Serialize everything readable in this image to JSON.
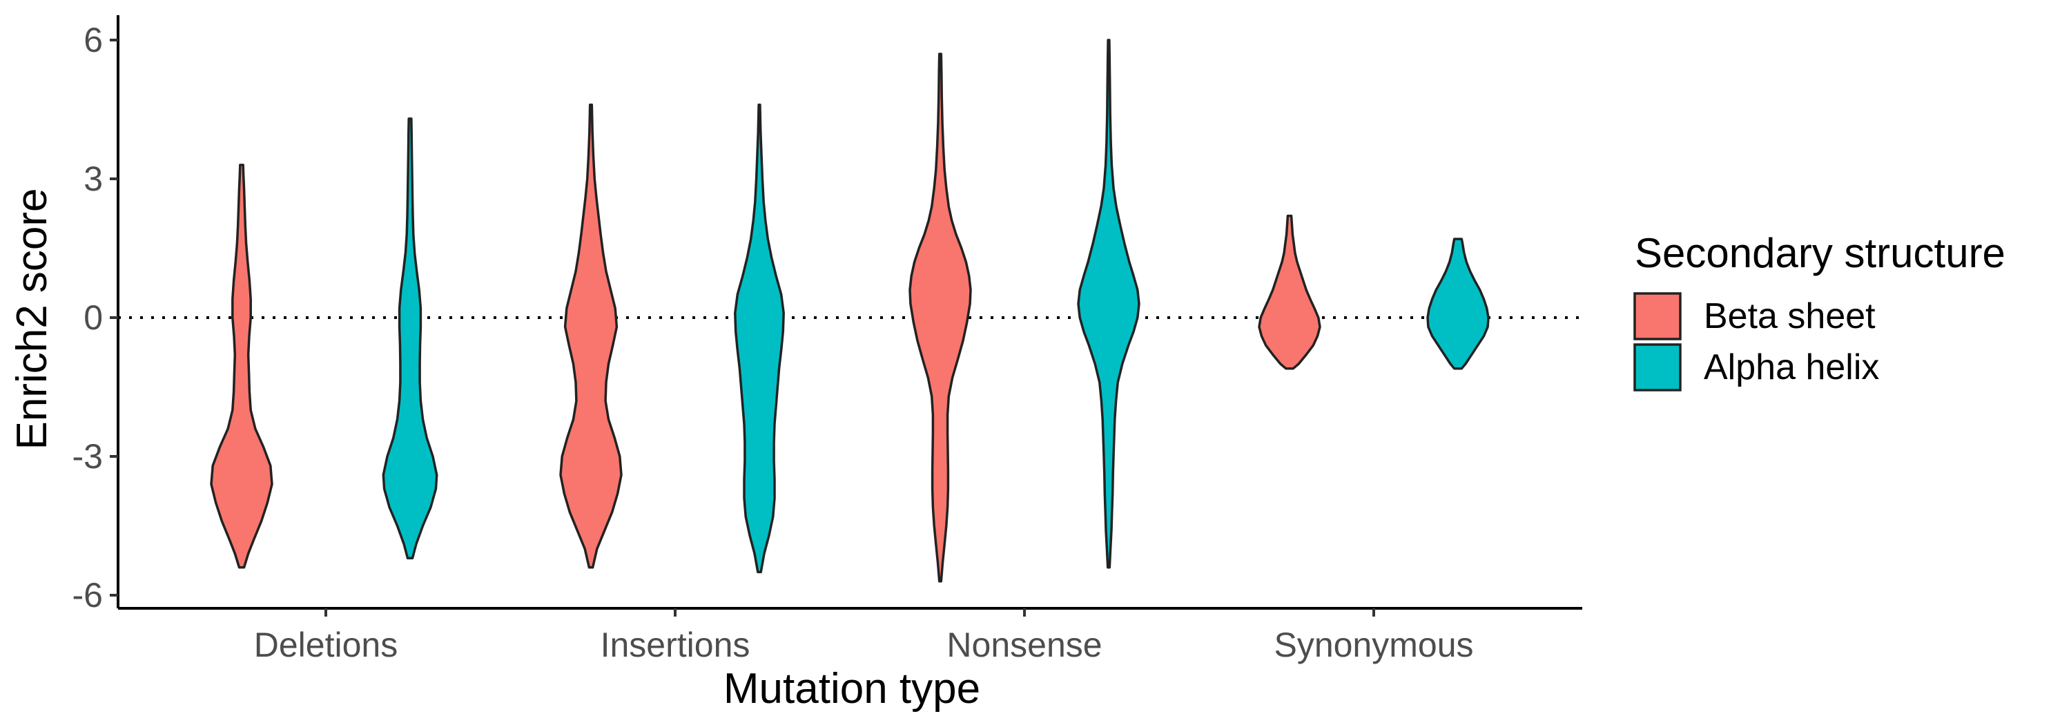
{
  "chart_data": {
    "type": "violin",
    "title": "",
    "xlabel": "Mutation type",
    "ylabel": "Enrich2 score",
    "ylim": [
      -6.3,
      6.6
    ],
    "yticks": [
      "6",
      "3",
      "0",
      "-3",
      "-6"
    ],
    "categories": [
      "Deletions",
      "Insertions",
      "Nonsense",
      "Synonymous"
    ],
    "reference_line": {
      "y": 0,
      "style": "dotted"
    },
    "grid": false,
    "legend": {
      "title": "Secondary structure",
      "position": "right",
      "entries": [
        "Beta sheet",
        "Alpha helix"
      ]
    },
    "series": [
      {
        "name": "Beta sheet",
        "color": "#F8766D",
        "violins": [
          {
            "category": "Deletions",
            "min": -5.4,
            "max": 3.3,
            "profile": [
              [
                -5.4,
                0.08
              ],
              [
                -5.1,
                0.22
              ],
              [
                -4.8,
                0.4
              ],
              [
                -4.4,
                0.65
              ],
              [
                -4.0,
                0.85
              ],
              [
                -3.6,
                1.0
              ],
              [
                -3.2,
                0.95
              ],
              [
                -2.8,
                0.72
              ],
              [
                -2.4,
                0.45
              ],
              [
                -2.0,
                0.3
              ],
              [
                -1.6,
                0.26
              ],
              [
                -1.2,
                0.24
              ],
              [
                -0.8,
                0.22
              ],
              [
                -0.4,
                0.25
              ],
              [
                0,
                0.3
              ],
              [
                0.4,
                0.3
              ],
              [
                0.8,
                0.26
              ],
              [
                1.2,
                0.2
              ],
              [
                1.6,
                0.15
              ],
              [
                2.0,
                0.12
              ],
              [
                2.4,
                0.1
              ],
              [
                2.8,
                0.08
              ],
              [
                3.1,
                0.06
              ],
              [
                3.3,
                0.05
              ]
            ]
          },
          {
            "category": "Insertions",
            "min": -5.4,
            "max": 4.6,
            "profile": [
              [
                -5.4,
                0.06
              ],
              [
                -5.0,
                0.2
              ],
              [
                -4.6,
                0.45
              ],
              [
                -4.2,
                0.7
              ],
              [
                -3.8,
                0.88
              ],
              [
                -3.4,
                1.0
              ],
              [
                -3.0,
                0.95
              ],
              [
                -2.6,
                0.78
              ],
              [
                -2.2,
                0.58
              ],
              [
                -1.8,
                0.48
              ],
              [
                -1.4,
                0.5
              ],
              [
                -1.0,
                0.58
              ],
              [
                -0.6,
                0.72
              ],
              [
                -0.2,
                0.85
              ],
              [
                0.2,
                0.8
              ],
              [
                0.6,
                0.65
              ],
              [
                1.0,
                0.5
              ],
              [
                1.4,
                0.4
              ],
              [
                1.8,
                0.32
              ],
              [
                2.2,
                0.25
              ],
              [
                2.6,
                0.18
              ],
              [
                3.0,
                0.12
              ],
              [
                3.5,
                0.08
              ],
              [
                4.0,
                0.05
              ],
              [
                4.6,
                0.03
              ]
            ]
          },
          {
            "category": "Nonsense",
            "min": -5.7,
            "max": 5.7,
            "profile": [
              [
                -5.7,
                0.03
              ],
              [
                -5.3,
                0.08
              ],
              [
                -4.9,
                0.14
              ],
              [
                -4.5,
                0.2
              ],
              [
                -4.1,
                0.24
              ],
              [
                -3.7,
                0.26
              ],
              [
                -3.3,
                0.26
              ],
              [
                -2.9,
                0.25
              ],
              [
                -2.5,
                0.24
              ],
              [
                -2.1,
                0.24
              ],
              [
                -1.7,
                0.28
              ],
              [
                -1.3,
                0.4
              ],
              [
                -0.9,
                0.58
              ],
              [
                -0.5,
                0.75
              ],
              [
                -0.1,
                0.88
              ],
              [
                0.3,
                0.98
              ],
              [
                0.6,
                1.0
              ],
              [
                0.9,
                0.95
              ],
              [
                1.2,
                0.85
              ],
              [
                1.5,
                0.7
              ],
              [
                1.8,
                0.52
              ],
              [
                2.1,
                0.38
              ],
              [
                2.4,
                0.28
              ],
              [
                2.8,
                0.2
              ],
              [
                3.2,
                0.14
              ],
              [
                3.7,
                0.1
              ],
              [
                4.2,
                0.07
              ],
              [
                4.8,
                0.05
              ],
              [
                5.3,
                0.04
              ],
              [
                5.7,
                0.03
              ]
            ]
          },
          {
            "category": "Synonymous",
            "min": -1.1,
            "max": 2.2,
            "profile": [
              [
                -1.1,
                0.12
              ],
              [
                -1.0,
                0.3
              ],
              [
                -0.8,
                0.55
              ],
              [
                -0.6,
                0.78
              ],
              [
                -0.4,
                0.92
              ],
              [
                -0.2,
                1.0
              ],
              [
                0,
                0.95
              ],
              [
                0.2,
                0.82
              ],
              [
                0.4,
                0.68
              ],
              [
                0.6,
                0.55
              ],
              [
                0.8,
                0.45
              ],
              [
                1.0,
                0.35
              ],
              [
                1.2,
                0.25
              ],
              [
                1.4,
                0.18
              ],
              [
                1.6,
                0.14
              ],
              [
                1.8,
                0.1
              ],
              [
                2.0,
                0.08
              ],
              [
                2.2,
                0.06
              ]
            ]
          }
        ]
      },
      {
        "name": "Alpha helix",
        "color": "#00BFC4",
        "violins": [
          {
            "category": "Deletions",
            "min": -5.2,
            "max": 4.3,
            "profile": [
              [
                -5.2,
                0.08
              ],
              [
                -4.9,
                0.2
              ],
              [
                -4.5,
                0.42
              ],
              [
                -4.1,
                0.68
              ],
              [
                -3.7,
                0.85
              ],
              [
                -3.4,
                0.88
              ],
              [
                -3.0,
                0.75
              ],
              [
                -2.6,
                0.55
              ],
              [
                -2.2,
                0.42
              ],
              [
                -1.8,
                0.35
              ],
              [
                -1.4,
                0.32
              ],
              [
                -1.0,
                0.32
              ],
              [
                -0.6,
                0.33
              ],
              [
                -0.2,
                0.35
              ],
              [
                0.2,
                0.35
              ],
              [
                0.6,
                0.3
              ],
              [
                1.0,
                0.22
              ],
              [
                1.4,
                0.15
              ],
              [
                1.8,
                0.11
              ],
              [
                2.2,
                0.09
              ],
              [
                2.6,
                0.08
              ],
              [
                3.0,
                0.07
              ],
              [
                3.5,
                0.06
              ],
              [
                4.0,
                0.05
              ],
              [
                4.3,
                0.04
              ]
            ]
          },
          {
            "category": "Insertions",
            "min": -5.5,
            "max": 4.6,
            "profile": [
              [
                -5.5,
                0.05
              ],
              [
                -5.1,
                0.16
              ],
              [
                -4.7,
                0.32
              ],
              [
                -4.3,
                0.45
              ],
              [
                -3.9,
                0.5
              ],
              [
                -3.5,
                0.5
              ],
              [
                -3.1,
                0.48
              ],
              [
                -2.7,
                0.48
              ],
              [
                -2.3,
                0.5
              ],
              [
                -1.9,
                0.55
              ],
              [
                -1.5,
                0.6
              ],
              [
                -1.1,
                0.65
              ],
              [
                -0.7,
                0.72
              ],
              [
                -0.3,
                0.78
              ],
              [
                0.1,
                0.8
              ],
              [
                0.5,
                0.72
              ],
              [
                0.9,
                0.55
              ],
              [
                1.3,
                0.4
              ],
              [
                1.7,
                0.28
              ],
              [
                2.1,
                0.2
              ],
              [
                2.5,
                0.14
              ],
              [
                3.0,
                0.1
              ],
              [
                3.5,
                0.07
              ],
              [
                4.0,
                0.04
              ],
              [
                4.6,
                0.02
              ]
            ]
          },
          {
            "category": "Nonsense",
            "min": -5.4,
            "max": 6.0,
            "profile": [
              [
                -5.4,
                0.03
              ],
              [
                -5.0,
                0.06
              ],
              [
                -4.6,
                0.09
              ],
              [
                -4.2,
                0.11
              ],
              [
                -3.8,
                0.13
              ],
              [
                -3.4,
                0.14
              ],
              [
                -3.0,
                0.16
              ],
              [
                -2.6,
                0.18
              ],
              [
                -2.2,
                0.2
              ],
              [
                -1.8,
                0.24
              ],
              [
                -1.4,
                0.3
              ],
              [
                -1.0,
                0.45
              ],
              [
                -0.6,
                0.65
              ],
              [
                -0.3,
                0.82
              ],
              [
                0,
                0.95
              ],
              [
                0.3,
                1.0
              ],
              [
                0.6,
                0.95
              ],
              [
                0.9,
                0.82
              ],
              [
                1.2,
                0.68
              ],
              [
                1.6,
                0.52
              ],
              [
                2.0,
                0.38
              ],
              [
                2.4,
                0.25
              ],
              [
                2.8,
                0.16
              ],
              [
                3.3,
                0.1
              ],
              [
                3.8,
                0.07
              ],
              [
                4.4,
                0.05
              ],
              [
                5.0,
                0.04
              ],
              [
                5.6,
                0.03
              ],
              [
                6.0,
                0.02
              ]
            ]
          },
          {
            "category": "Synonymous",
            "min": -1.1,
            "max": 1.7,
            "profile": [
              [
                -1.1,
                0.12
              ],
              [
                -1.0,
                0.25
              ],
              [
                -0.8,
                0.45
              ],
              [
                -0.6,
                0.65
              ],
              [
                -0.4,
                0.85
              ],
              [
                -0.2,
                0.98
              ],
              [
                0,
                1.0
              ],
              [
                0.2,
                0.95
              ],
              [
                0.4,
                0.85
              ],
              [
                0.6,
                0.72
              ],
              [
                0.8,
                0.55
              ],
              [
                1.0,
                0.4
              ],
              [
                1.2,
                0.28
              ],
              [
                1.4,
                0.2
              ],
              [
                1.6,
                0.15
              ],
              [
                1.7,
                0.12
              ]
            ]
          }
        ]
      }
    ]
  }
}
